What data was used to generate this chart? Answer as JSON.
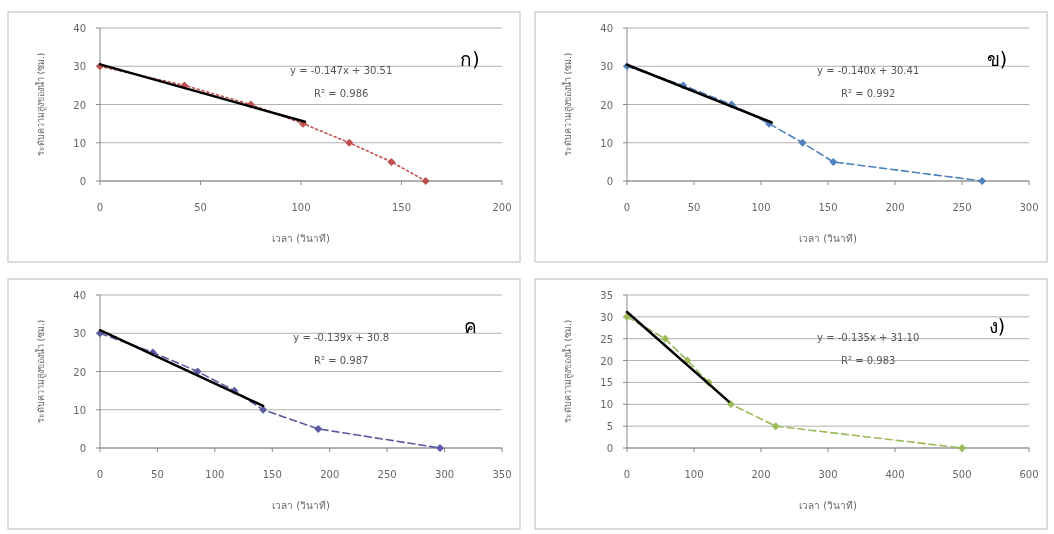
{
  "chart_data": [
    {
      "type": "line",
      "title": "ก)",
      "xlabel": "เวลา (วินาที)",
      "ylabel": "ระดับความสูงของน้ำ (ซม.)",
      "xlim": [
        0,
        200
      ],
      "xticks": [
        0,
        50,
        100,
        150,
        200
      ],
      "ylim": [
        0,
        40
      ],
      "yticks": [
        0,
        10,
        20,
        30,
        40
      ],
      "grid": "y",
      "annotations": [
        "y = -0.147x + 30.51",
        "R² = 0.986"
      ],
      "series": [
        {
          "color": "#c0504d",
          "marker": "diamond",
          "line_style": "dotted",
          "x": [
            0,
            42,
            75,
            101,
            124,
            145,
            162
          ],
          "values": [
            30,
            25,
            20,
            15,
            10,
            5,
            0
          ]
        },
        {
          "color": "#000000",
          "marker": "none",
          "line_style": "solid",
          "x": [
            0,
            102
          ],
          "values": [
            30.5,
            15.5
          ]
        }
      ]
    },
    {
      "type": "line",
      "title": "ข)",
      "xlabel": "เวลา (วินาที)",
      "ylabel": "ระดับความสูงของน้ำ (ซม.)",
      "xlim": [
        0,
        300
      ],
      "xticks": [
        0,
        50,
        100,
        150,
        200,
        250,
        300
      ],
      "ylim": [
        0,
        40
      ],
      "yticks": [
        0,
        10,
        20,
        30,
        40
      ],
      "grid": "y",
      "annotations": [
        "y = -0.140x + 30.41",
        "R² = 0.992"
      ],
      "series": [
        {
          "color": "#4f81bd",
          "marker": "diamond",
          "line_style": "dashed",
          "x": [
            0,
            42,
            78,
            106,
            131,
            154,
            265
          ],
          "values": [
            30,
            25,
            20,
            15,
            10,
            5,
            0
          ]
        },
        {
          "color": "#000000",
          "marker": "none",
          "line_style": "solid",
          "x": [
            0,
            108
          ],
          "values": [
            30.4,
            15.3
          ]
        }
      ]
    },
    {
      "type": "line",
      "title": "ค",
      "xlabel": "เวลา (วินาที)",
      "ylabel": "ระดับความสูงของน้ำ (ซม.)",
      "xlim": [
        0,
        350
      ],
      "xticks": [
        0,
        50,
        100,
        150,
        200,
        250,
        300,
        350
      ],
      "ylim": [
        0,
        40
      ],
      "yticks": [
        0,
        10,
        20,
        30,
        40
      ],
      "grid": "y",
      "annotations": [
        "y = -0.139x + 30.8",
        "R² = 0.987"
      ],
      "series": [
        {
          "color": "#5a5aa0",
          "marker": "diamond",
          "line_style": "dashed",
          "x": [
            0,
            46,
            85,
            117,
            142,
            190,
            296
          ],
          "values": [
            30,
            25,
            20,
            15,
            10,
            5,
            0
          ]
        },
        {
          "color": "#000000",
          "marker": "none",
          "line_style": "solid",
          "x": [
            0,
            142
          ],
          "values": [
            30.8,
            11
          ]
        }
      ]
    },
    {
      "type": "line",
      "title": "ง)",
      "xlabel": "เวลา (วินาที)",
      "ylabel": "ระดับความสูงของน้ำ (ซม.)",
      "xlim": [
        0,
        600
      ],
      "xticks": [
        0,
        100,
        200,
        300,
        400,
        500,
        600
      ],
      "ylim": [
        0,
        35
      ],
      "yticks": [
        0,
        5,
        10,
        15,
        20,
        25,
        30,
        35
      ],
      "grid": "y",
      "annotations": [
        "y = -0.135x + 31.10",
        "R² = 0.983"
      ],
      "series": [
        {
          "color": "#9bbb59",
          "marker": "diamond",
          "line_style": "dashed",
          "x": [
            0,
            57,
            90,
            122,
            155,
            222,
            500
          ],
          "values": [
            30,
            25,
            20,
            15,
            10,
            5,
            0
          ]
        },
        {
          "color": "#000000",
          "marker": "none",
          "line_style": "solid",
          "x": [
            0,
            152
          ],
          "values": [
            31.1,
            10.6
          ]
        }
      ]
    }
  ]
}
